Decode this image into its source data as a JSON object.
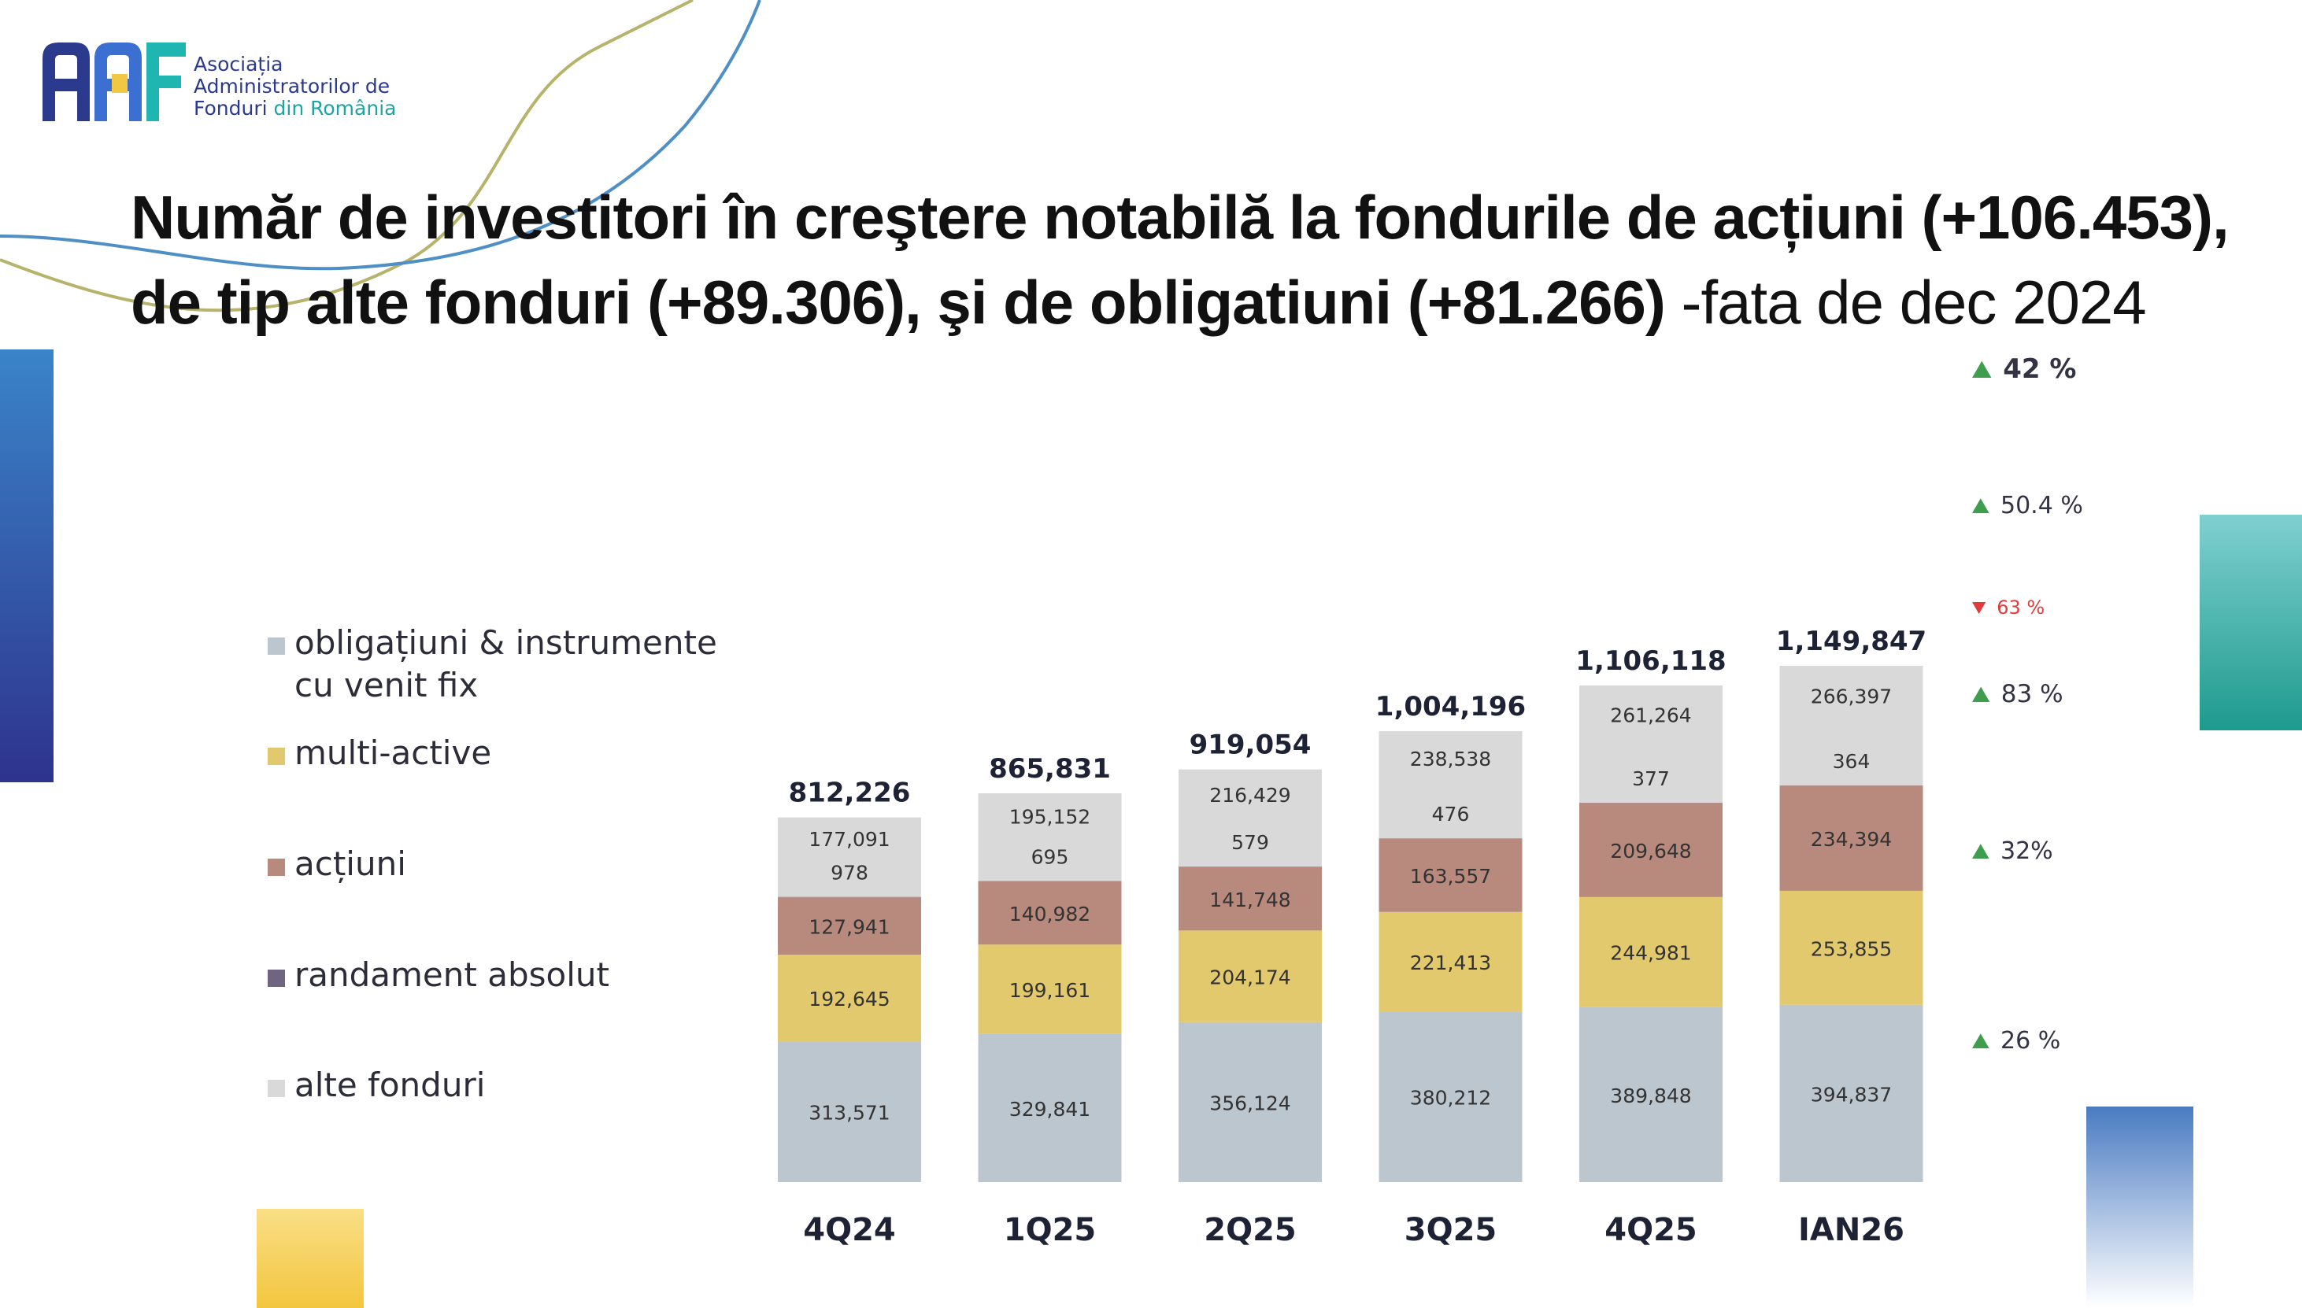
{
  "logo": {
    "text_line1": "Asociația",
    "text_line2": "Administratorilor de",
    "text_line3a": "Fonduri",
    "text_line3b": "din România",
    "colors": {
      "navy": "#2b3a8c",
      "blue": "#3b6fd1",
      "teal": "#1fb5b0",
      "yellow": "#f2c744"
    }
  },
  "title": {
    "line1": "Număr de investitori în creştere notabilă la fondurile de acțiuni (+106.453),",
    "line2_bold": "de tip alte fonduri (+89.306), şi de obligatiuni (+81.266)",
    "line2_normal": " -fata de dec 2024"
  },
  "legend": [
    {
      "label_line1": "obligațiuni & instrumente",
      "label_line2": "cu venit fix",
      "color": "#bcc6ce"
    },
    {
      "label_line1": "multi-active",
      "color": "#e2c96d"
    },
    {
      "label_line1": "acțiuni",
      "color": "#b88a7e"
    },
    {
      "label_line1": "randament absolut",
      "color": "#6f6580"
    },
    {
      "label_line1": "alte fonduri",
      "color": "#d9d9d9"
    }
  ],
  "chart_data": {
    "type": "bar",
    "stacked": true,
    "categories": [
      "4Q24",
      "1Q25",
      "2Q25",
      "3Q25",
      "4Q25",
      "IAN26"
    ],
    "series": [
      {
        "name": "obligațiuni & instrumente cu venit fix",
        "color": "#bcc6ce",
        "values": [
          313571,
          329841,
          356124,
          380212,
          389848,
          394837
        ],
        "labels": [
          "313,571",
          "329,841",
          "356,124",
          "380,212",
          "389,848",
          "394,837"
        ]
      },
      {
        "name": "multi-active",
        "color": "#e2c96d",
        "values": [
          192645,
          199161,
          204174,
          221413,
          244981,
          253855
        ],
        "labels": [
          "192,645",
          "199,161",
          "204,174",
          "221,413",
          "244,981",
          "253,855"
        ]
      },
      {
        "name": "acțiuni",
        "color": "#b88a7e",
        "values": [
          127941,
          140982,
          141748,
          163557,
          209648,
          234394
        ],
        "labels": [
          "127,941",
          "140,982",
          "141,748",
          "163,557",
          "209,648",
          "234,394"
        ]
      },
      {
        "name": "randament absolut",
        "color": "#6f6580",
        "values": [
          978,
          695,
          579,
          476,
          377,
          364
        ],
        "labels": [
          "978",
          "695",
          "579",
          "476",
          "377",
          "364"
        ]
      },
      {
        "name": "alte fonduri",
        "color": "#d9d9d9",
        "values": [
          177091,
          195152,
          216429,
          238538,
          261264,
          266397
        ],
        "labels": [
          "177,091",
          "195,152",
          "216,429",
          "238,538",
          "261,264",
          "266,397"
        ]
      }
    ],
    "totals": [
      812226,
      865831,
      919054,
      1004196,
      1106118,
      1149847
    ],
    "total_labels": [
      "812,226",
      "865,831",
      "919,054",
      "1,004,196",
      "1,106,118",
      "1,149,847"
    ],
    "ylim": [
      0,
      1200000
    ],
    "changes": [
      {
        "text": "42 %",
        "direction": "up",
        "applies_to": "total"
      },
      {
        "text": "50.4 %",
        "direction": "up",
        "applies_to": "alte fonduri"
      },
      {
        "text": "63 %",
        "direction": "down",
        "applies_to": "randament absolut"
      },
      {
        "text": "83 %",
        "direction": "up",
        "applies_to": "acțiuni"
      },
      {
        "text": "32%",
        "direction": "up",
        "applies_to": "multi-active"
      },
      {
        "text": "26 %",
        "direction": "up",
        "applies_to": "obligațiuni & instrumente cu venit fix"
      }
    ],
    "colors": {
      "up": "#3f9e4e",
      "down": "#e23b3b"
    }
  }
}
